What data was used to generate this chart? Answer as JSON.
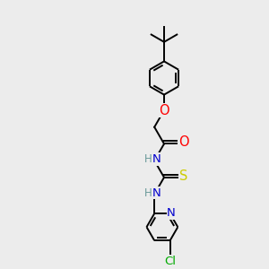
{
  "bg_color": "#ececec",
  "bond_color": "#000000",
  "atom_colors": {
    "O": "#ff0000",
    "N": "#0000cd",
    "S": "#cccc00",
    "Cl": "#00aa00",
    "C": "#000000",
    "H": "#6a9a9a"
  },
  "font_size": 8.5,
  "bond_width": 1.4,
  "ring_r": 0.62,
  "py_r": 0.58
}
